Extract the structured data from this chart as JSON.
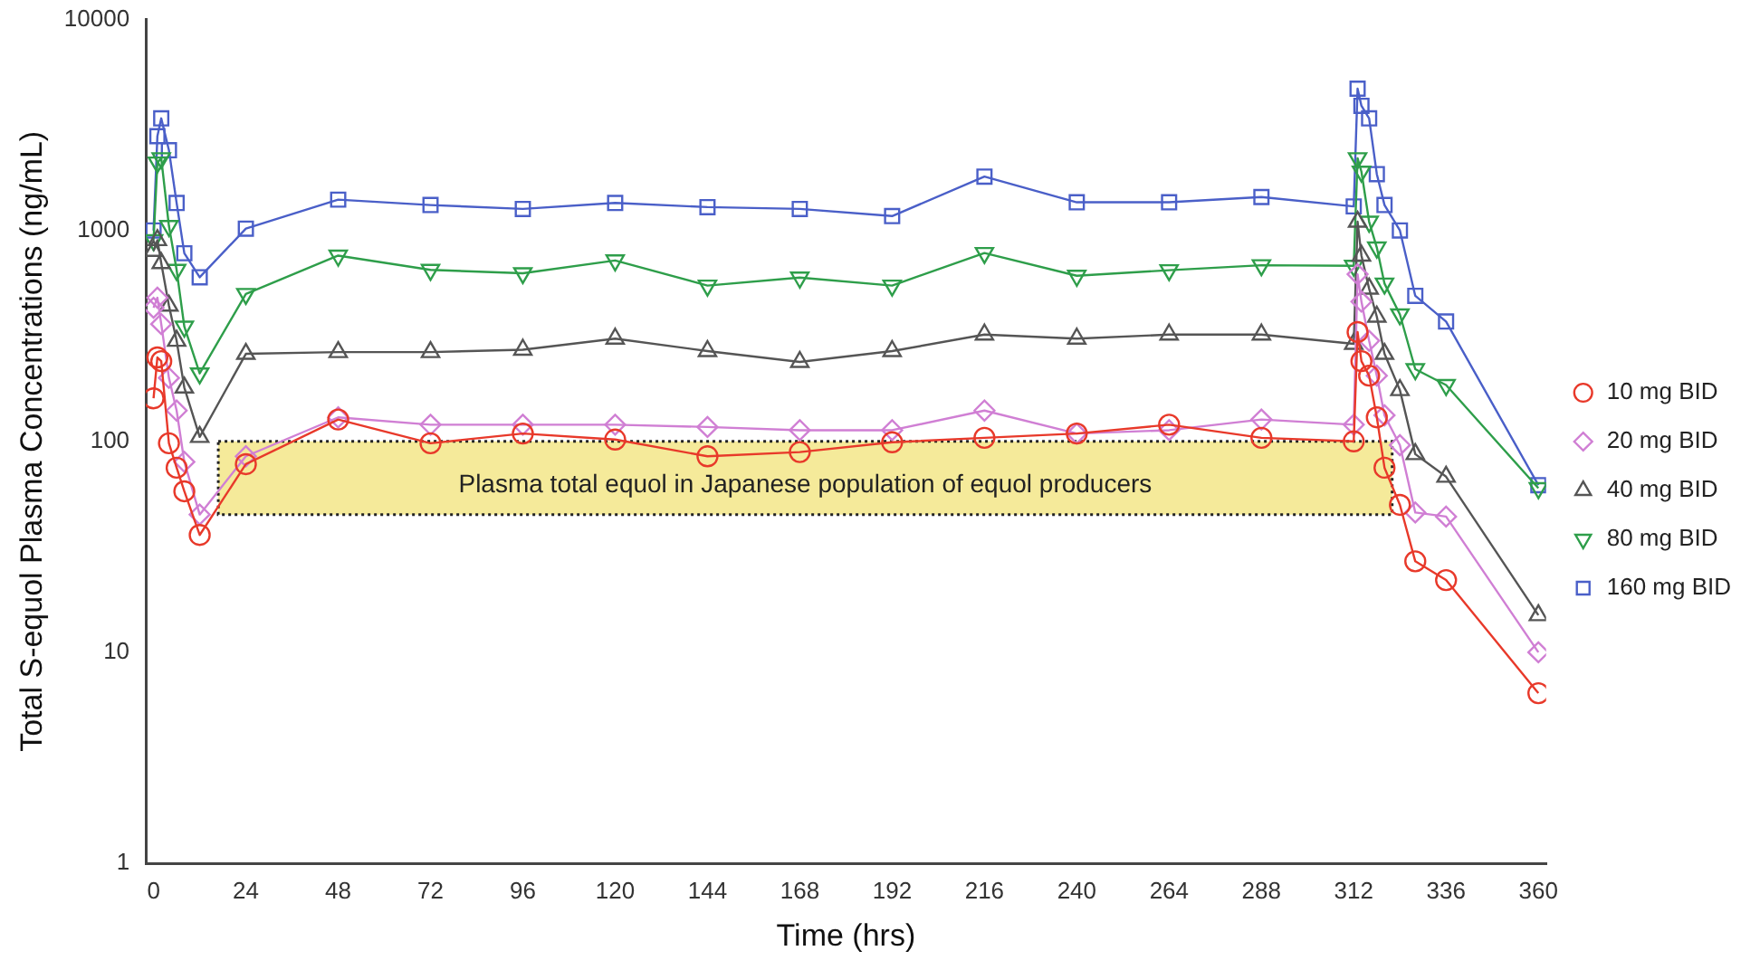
{
  "chart_data": {
    "type": "line",
    "xlabel": "Time (hrs)",
    "ylabel": "Total S-equol Plasma Concentrations (ng/mL)",
    "x": [
      0,
      1,
      2,
      4,
      6,
      8,
      12,
      24,
      48,
      72,
      96,
      120,
      144,
      168,
      192,
      216,
      240,
      264,
      288,
      312,
      313,
      314,
      316,
      318,
      320,
      324,
      328,
      336,
      360
    ],
    "xlim": [
      -2,
      362
    ],
    "xticks": [
      0,
      24,
      48,
      72,
      96,
      120,
      144,
      168,
      192,
      216,
      240,
      264,
      288,
      312,
      336,
      360
    ],
    "ylim": [
      1,
      10000
    ],
    "yticks": [
      1,
      10,
      100,
      1000,
      10000
    ],
    "log": true,
    "grid": false,
    "legend": "right",
    "series": [
      {
        "name": "10 mg BID",
        "color": "#e8392a",
        "marker": "circle",
        "values": [
          160,
          250,
          240,
          98,
          75,
          58,
          36,
          78,
          127,
          98,
          109,
          102,
          85,
          89,
          99,
          104,
          109,
          120,
          104,
          100,
          330,
          240,
          205,
          130,
          75,
          50,
          27,
          22,
          6.4
        ]
      },
      {
        "name": "20 mg BID",
        "color": "#d07fd4",
        "marker": "diamond",
        "values": [
          430,
          480,
          360,
          200,
          140,
          80,
          45,
          85,
          130,
          120,
          120,
          120,
          117,
          113,
          113,
          140,
          109,
          113,
          127,
          120,
          620,
          460,
          300,
          205,
          133,
          96,
          46,
          44,
          10
        ]
      },
      {
        "name": "40 mg BID",
        "color": "#555555",
        "marker": "triangle",
        "values": [
          800,
          900,
          700,
          440,
          300,
          180,
          105,
          260,
          265,
          265,
          272,
          307,
          268,
          238,
          268,
          321,
          307,
          321,
          321,
          290,
          1100,
          760,
          530,
          390,
          260,
          175,
          87,
          68,
          15
        ]
      },
      {
        "name": "80 mg BID",
        "color": "#2e9e4a",
        "marker": "triangle-down",
        "values": [
          900,
          2100,
          2200,
          1050,
          650,
          350,
          210,
          500,
          760,
          650,
          627,
          721,
          548,
          598,
          548,
          782,
          610,
          648,
          684,
          680,
          2200,
          1900,
          1100,
          830,
          560,
          400,
          220,
          185,
          60
        ]
      },
      {
        "name": "160 mg BID",
        "color": "#4a5fc8",
        "marker": "square",
        "values": [
          1000,
          2800,
          3400,
          2400,
          1350,
          780,
          600,
          1020,
          1400,
          1320,
          1265,
          1350,
          1290,
          1265,
          1170,
          1800,
          1360,
          1360,
          1440,
          1300,
          4700,
          3900,
          3400,
          1850,
          1320,
          1000,
          490,
          370,
          62
        ]
      }
    ],
    "bands": [
      {
        "axis": "y",
        "from": 45,
        "to": 100,
        "label": "Plasma total equol in Japanese population of equol producers",
        "color": "#f5ea9a"
      }
    ]
  }
}
